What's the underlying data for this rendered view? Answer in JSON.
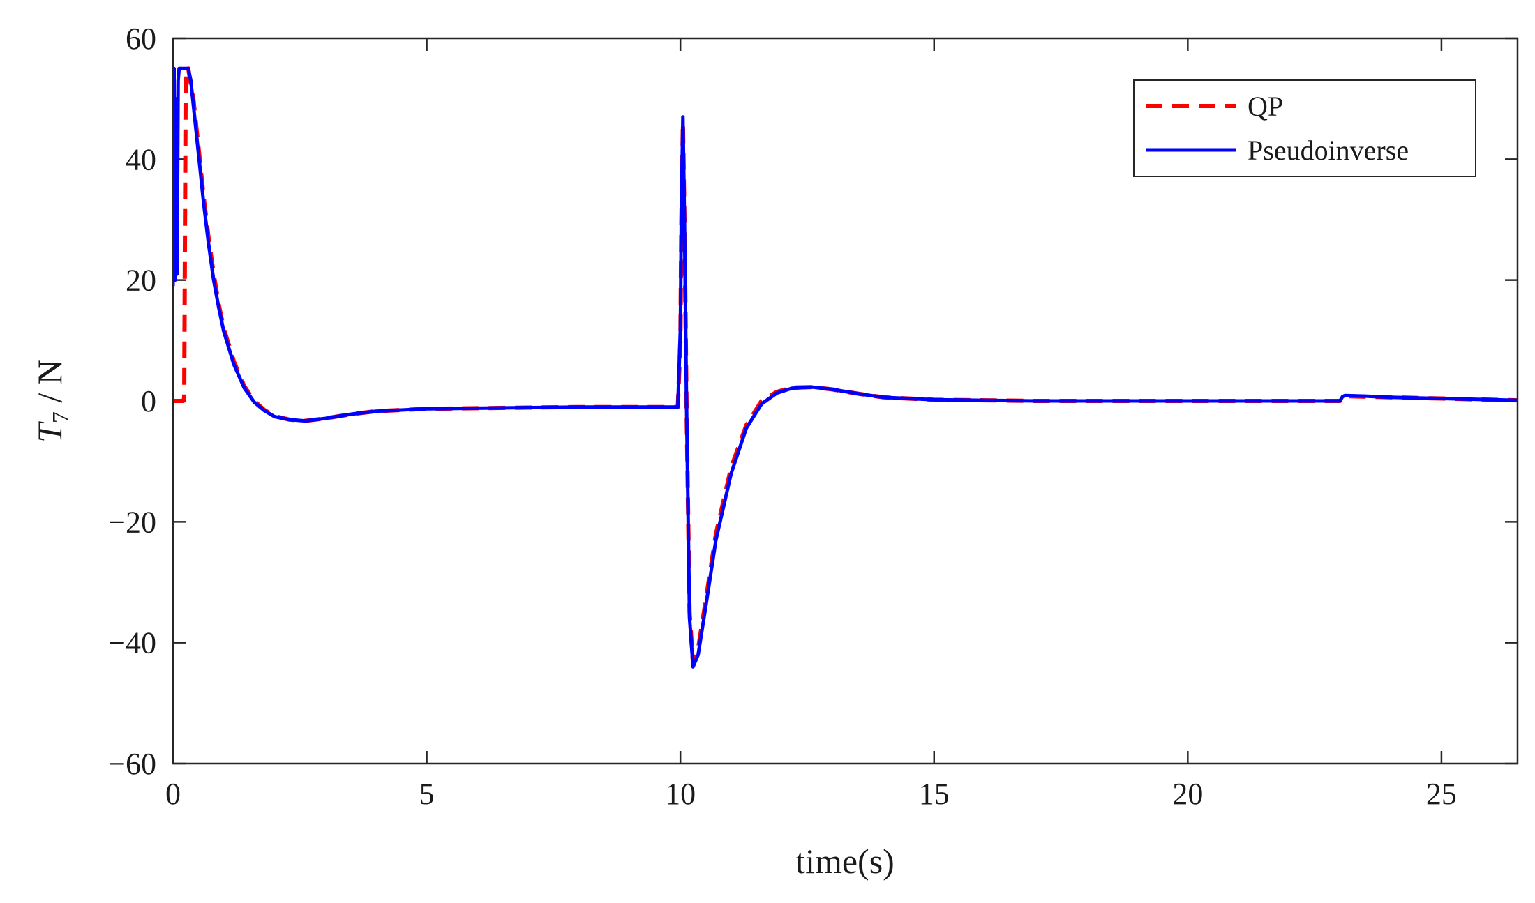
{
  "chart_data": {
    "type": "line",
    "xlabel": "time(s)",
    "ylabel": "T",
    "ylabel_subscript": "7",
    "ylabel_unit": " / N",
    "xlim": [
      0,
      26.5
    ],
    "ylim": [
      -60,
      60
    ],
    "xticks": [
      0,
      5,
      10,
      15,
      20,
      25
    ],
    "yticks": [
      -60,
      -40,
      -20,
      0,
      20,
      40,
      60
    ],
    "xtick_labels": [
      "0",
      "5",
      "10",
      "15",
      "20",
      "25"
    ],
    "ytick_labels": [
      "−60",
      "−40",
      "−20",
      "0",
      "20",
      "40",
      "60"
    ],
    "grid": false,
    "legend_position": "top-right",
    "series": [
      {
        "name": "QP",
        "color": "#ff0000",
        "style": "dashed",
        "x": [
          0,
          0.15,
          0.2,
          0.22,
          0.25,
          0.3,
          0.4,
          0.5,
          0.6,
          0.7,
          0.8,
          0.9,
          1.0,
          1.2,
          1.4,
          1.6,
          1.8,
          2.0,
          2.3,
          2.6,
          3.0,
          3.5,
          4.0,
          4.5,
          5.0,
          6.0,
          7.0,
          8.0,
          9.0,
          9.95,
          10.0,
          10.02,
          10.05,
          10.08,
          10.12,
          10.18,
          10.25,
          10.35,
          10.5,
          10.7,
          11.0,
          11.3,
          11.6,
          11.9,
          12.2,
          12.6,
          13.0,
          13.5,
          14.0,
          15.0,
          16.0,
          17.0,
          18.0,
          19.0,
          20.0,
          21.0,
          22.0,
          23.0,
          23.05,
          23.1,
          23.5,
          24.0,
          25.0,
          26.0,
          26.5
        ],
        "y": [
          0,
          0,
          0,
          0.5,
          55,
          55,
          50,
          42,
          34,
          27,
          21,
          16,
          12,
          6.5,
          2.5,
          0,
          -1.5,
          -2.5,
          -3.1,
          -3.3,
          -2.9,
          -2.2,
          -1.7,
          -1.5,
          -1.3,
          -1.2,
          -1.1,
          -1.0,
          -1.0,
          -1.0,
          10,
          30,
          46,
          30,
          0,
          -35,
          -43.5,
          -41,
          -33,
          -22,
          -11,
          -4,
          0,
          1.5,
          2.2,
          2.3,
          1.9,
          1.2,
          0.6,
          0.2,
          0.1,
          0,
          0,
          0,
          0,
          0,
          0,
          0,
          0.6,
          0.8,
          0.7,
          0.6,
          0.4,
          0.2,
          0.1
        ]
      },
      {
        "name": "Pseudoinverse",
        "color": "#0000ff",
        "style": "solid",
        "x": [
          0,
          0.02,
          0.04,
          0.06,
          0.08,
          0.1,
          0.12,
          0.14,
          0.16,
          0.3,
          0.35,
          0.4,
          0.5,
          0.6,
          0.7,
          0.8,
          0.9,
          1.0,
          1.2,
          1.4,
          1.6,
          1.8,
          2.0,
          2.3,
          2.6,
          3.0,
          3.5,
          4.0,
          4.5,
          5.0,
          6.0,
          7.0,
          8.0,
          9.0,
          9.95,
          10.0,
          10.02,
          10.05,
          10.08,
          10.12,
          10.18,
          10.25,
          10.35,
          10.5,
          10.7,
          11.0,
          11.3,
          11.6,
          11.9,
          12.2,
          12.6,
          13.0,
          13.5,
          14.0,
          15.0,
          16.0,
          17.0,
          18.0,
          19.0,
          20.0,
          21.0,
          22.0,
          23.0,
          23.05,
          23.1,
          23.5,
          24.0,
          25.0,
          26.0,
          26.5
        ],
        "y": [
          19,
          55,
          20,
          50,
          21,
          53,
          55,
          55,
          55,
          55,
          53,
          49,
          41,
          33,
          26,
          20,
          15.5,
          11.5,
          6,
          2.2,
          -0.2,
          -1.6,
          -2.6,
          -3.1,
          -3.3,
          -2.9,
          -2.2,
          -1.7,
          -1.5,
          -1.3,
          -1.2,
          -1.1,
          -1.0,
          -1.0,
          -1.0,
          12,
          32,
          47,
          30,
          0,
          -36,
          -44,
          -42,
          -34,
          -23,
          -12,
          -4.5,
          -0.5,
          1.3,
          2.1,
          2.3,
          1.9,
          1.2,
          0.6,
          0.2,
          0.1,
          0,
          0,
          0,
          0,
          0,
          0,
          0,
          0.7,
          0.9,
          0.8,
          0.6,
          0.4,
          0.2,
          0.1
        ]
      }
    ]
  }
}
